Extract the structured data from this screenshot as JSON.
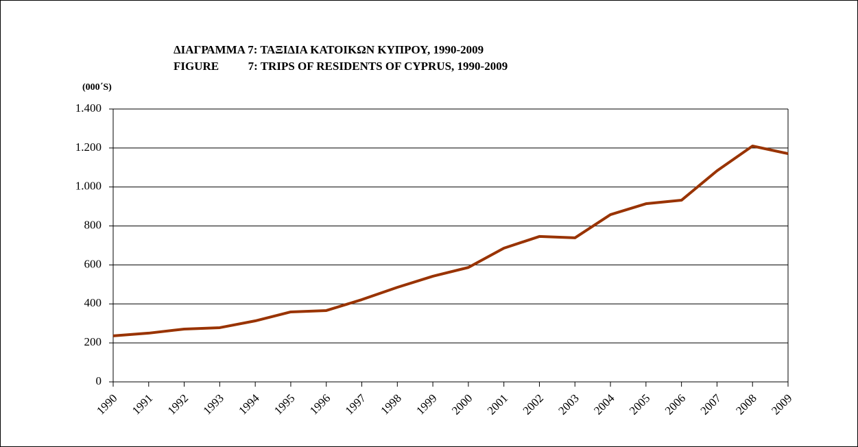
{
  "chart_data": {
    "type": "line",
    "title": "ΔΙΑΓΡΑΜΜΑ 7: ΤΑΞΙΔΙΑ ΚΑΤΟΙΚΩΝ ΚΥΠΡΟΥ, 1990-2009",
    "subtitle": "FIGURE          7: TRIPS OF RESIDENTS OF CYPRUS, 1990-2009",
    "y_label": "(000΄S)",
    "categories": [
      "1990",
      "1991",
      "1992",
      "1993",
      "1994",
      "1995",
      "1996",
      "1997",
      "1998",
      "1999",
      "2000",
      "2001",
      "2002",
      "2003",
      "2004",
      "2005",
      "2006",
      "2007",
      "2008",
      "2009"
    ],
    "series": [
      {
        "name": "Trips",
        "color": "#993300",
        "values": [
          236,
          250,
          271,
          278,
          313,
          359,
          366,
          422,
          485,
          542,
          587,
          686,
          746,
          739,
          858,
          914,
          932,
          1083,
          1210,
          1171
        ]
      }
    ],
    "ylim": [
      0,
      1400
    ],
    "yticks": [
      0,
      200,
      400,
      600,
      800,
      {
        "value": 1000,
        "label": "1.000"
      },
      {
        "value": 1200,
        "label": "1.200"
      },
      {
        "value": 1400,
        "label": "1.400"
      }
    ],
    "grid": true
  }
}
